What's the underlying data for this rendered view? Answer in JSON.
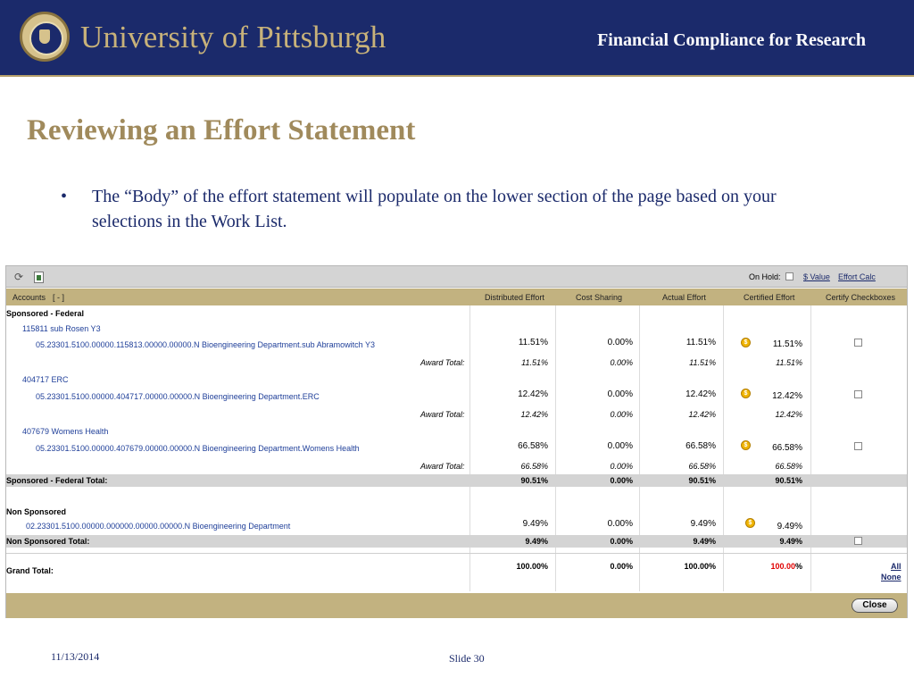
{
  "header": {
    "university": "University of Pittsburgh",
    "subtitle": "Financial Compliance for Research"
  },
  "slide": {
    "title": "Reviewing an Effort Statement",
    "bullet": "The “Body” of the effort statement will populate on the lower section of the page based on your selections in the Work List."
  },
  "app": {
    "toolbar": {
      "refresh_icon": "refresh-icon",
      "report_icon": "report-icon",
      "on_hold_label": "On Hold:",
      "value_link": "$ Value",
      "calc_link": "Effort Calc"
    },
    "columns": {
      "accounts": "Accounts",
      "toggle": "[ - ]",
      "distributed": "Distributed Effort",
      "cost_sharing": "Cost Sharing",
      "actual": "Actual Effort",
      "certified": "Certified Effort",
      "checkboxes": "Certify Checkboxes"
    },
    "sections": {
      "sponsored_federal": "Sponsored - Federal",
      "non_sponsored": "Non Sponsored"
    },
    "awards": [
      {
        "header": "115811  sub Rosen Y3",
        "account": "05.23301.5100.00000.115813.00000.00000.N  Bioengineering Department.sub Abramowitch Y3",
        "distributed": "11.51%",
        "cost_sharing": "0.00%",
        "actual": "11.51%",
        "certified": "11.51%",
        "total_label": "Award Total:",
        "t_distributed": "11.51%",
        "t_cost_sharing": "0.00%",
        "t_actual": "11.51%",
        "t_certified": "11.51%"
      },
      {
        "header": "404717  ERC",
        "account": "05.23301.5100.00000.404717.00000.00000.N  Bioengineering Department.ERC",
        "distributed": "12.42%",
        "cost_sharing": "0.00%",
        "actual": "12.42%",
        "certified": "12.42%",
        "total_label": "Award Total:",
        "t_distributed": "12.42%",
        "t_cost_sharing": "0.00%",
        "t_actual": "12.42%",
        "t_certified": "12.42%"
      },
      {
        "header": "407679  Womens Health",
        "account": "05.23301.5100.00000.407679.00000.00000.N  Bioengineering Department.Womens Health",
        "distributed": "66.58%",
        "cost_sharing": "0.00%",
        "actual": "66.58%",
        "certified": "66.58%",
        "total_label": "Award Total:",
        "t_distributed": "66.58%",
        "t_cost_sharing": "0.00%",
        "t_actual": "66.58%",
        "t_certified": "66.58%"
      }
    ],
    "sponsored_total": {
      "label": "Sponsored - Federal Total:",
      "distributed": "90.51%",
      "cost_sharing": "0.00%",
      "actual": "90.51%",
      "certified": "90.51%"
    },
    "non_sponsored_row": {
      "account": "02.23301.5100.00000.000000.00000.00000.N  Bioengineering Department",
      "distributed": "9.49%",
      "cost_sharing": "0.00%",
      "actual": "9.49%",
      "certified": "9.49%"
    },
    "non_sponsored_total": {
      "label": "Non Sponsored Total:",
      "distributed": "9.49%",
      "cost_sharing": "0.00%",
      "actual": "9.49%",
      "certified": "9.49%"
    },
    "grand_total": {
      "label": "Grand Total:",
      "distributed": "100.00%",
      "cost_sharing": "0.00%",
      "actual": "100.00%",
      "certified_number": "100.00",
      "certified_suffix": "%",
      "all_link": "All",
      "none_link": "None"
    },
    "coin_glyph": "$",
    "close_label": "Close"
  },
  "footer": {
    "date": "11/13/2014",
    "slide": "Slide 30"
  }
}
